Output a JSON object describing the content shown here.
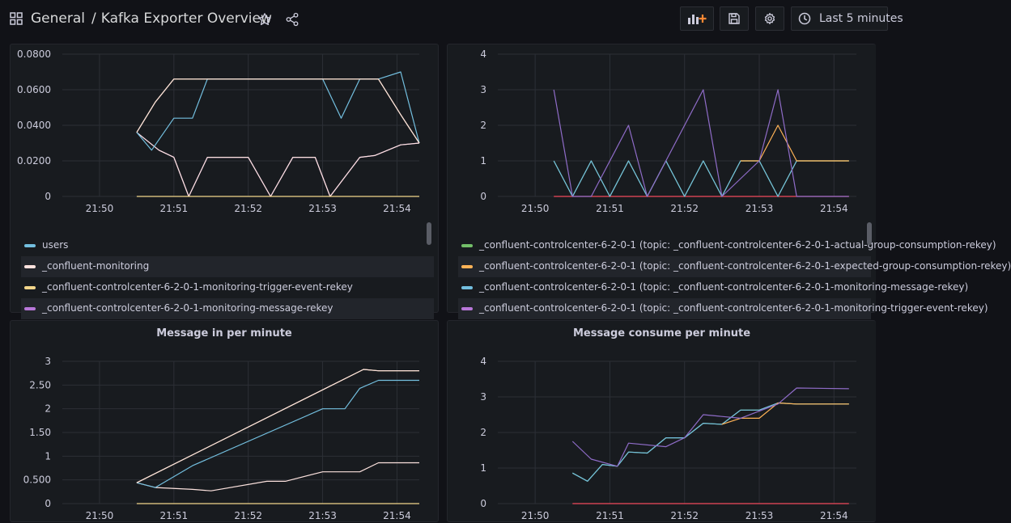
{
  "header": {
    "folder": "General",
    "separator": "/",
    "dashboard_title": "Kafka Exporter Overview",
    "time_range_label": "Last 5 minutes"
  },
  "panels": {
    "p1": {
      "title": "",
      "legend": [
        {
          "label": "users",
          "color": "#73bfdf"
        },
        {
          "label": "_confluent-monitoring",
          "color": "#fce2de"
        },
        {
          "label": "_confluent-controlcenter-6-2-0-1-monitoring-trigger-event-rekey",
          "color": "#f2d58a"
        },
        {
          "label": "_confluent-controlcenter-6-2-0-1-monitoring-message-rekey",
          "color": "#b877d9"
        }
      ]
    },
    "p2": {
      "title": "",
      "legend": [
        {
          "label": "_confluent-controlcenter-6-2-0-1 (topic: _confluent-controlcenter-6-2-0-1-actual-group-consumption-rekey)",
          "color": "#73bf69"
        },
        {
          "label": "_confluent-controlcenter-6-2-0-1 (topic: _confluent-controlcenter-6-2-0-1-expected-group-consumption-rekey)",
          "color": "#ffb357"
        },
        {
          "label": "_confluent-controlcenter-6-2-0-1 (topic: _confluent-controlcenter-6-2-0-1-monitoring-message-rekey)",
          "color": "#73bfdf"
        },
        {
          "label": "_confluent-controlcenter-6-2-0-1 (topic: _confluent-controlcenter-6-2-0-1-monitoring-trigger-event-rekey)",
          "color": "#b877d9"
        }
      ]
    },
    "p3": {
      "title": "Message in per minute"
    },
    "p4": {
      "title": "Message consume per minute"
    }
  },
  "chart_data": [
    {
      "type": "line",
      "xlim": [
        0,
        4.8
      ],
      "x_ticks": [
        0.5,
        1.5,
        2.5,
        3.5,
        4.5
      ],
      "x_tick_labels": [
        "21:50",
        "21:51",
        "21:52",
        "21:53",
        "21:54"
      ],
      "ylim": [
        0,
        0.08
      ],
      "y_ticks": [
        0,
        0.02,
        0.04,
        0.06,
        0.08
      ],
      "y_tick_labels": [
        "0",
        "0.0200",
        "0.0400",
        "0.0600",
        "0.0800"
      ],
      "grid": true,
      "series": [
        {
          "color": "#b877d9",
          "x": [
            1.0,
            1.3,
            1.5,
            1.7,
            1.95,
            2.5,
            2.8,
            3.1,
            3.4,
            3.6,
            4.0,
            4.2,
            4.55,
            4.8
          ],
          "y": [
            0.036,
            0.026,
            0.022,
            0,
            0.022,
            0.022,
            0,
            0.022,
            0.022,
            0,
            0.022,
            0.023,
            0.029,
            0.03
          ]
        },
        {
          "color": "#fce2de",
          "x": [
            1.0,
            1.3,
            1.5,
            1.7,
            1.95,
            2.5,
            2.8,
            3.1,
            3.4,
            3.6,
            4.0,
            4.2,
            4.55,
            4.8
          ],
          "y": [
            0.036,
            0.026,
            0.022,
            0,
            0.022,
            0.022,
            0,
            0.022,
            0.022,
            0,
            0.022,
            0.023,
            0.029,
            0.03
          ]
        },
        {
          "color": "#73bfdf",
          "x": [
            1.0,
            1.2,
            1.5,
            1.75,
            1.95,
            2.5,
            3.1,
            3.5,
            3.75,
            4.0,
            4.25,
            4.55,
            4.8
          ],
          "y": [
            0.036,
            0.026,
            0.044,
            0.044,
            0.066,
            0.066,
            0.066,
            0.066,
            0.044,
            0.066,
            0.066,
            0.07,
            0.03
          ]
        },
        {
          "color": "#f2d58a",
          "x": [
            1.0,
            1.25,
            1.5,
            1.75,
            1.95,
            2.5,
            3.1,
            3.5,
            3.75,
            4.0,
            4.25,
            4.55,
            4.8
          ],
          "y": [
            0.036,
            0.053,
            0.066,
            0.066,
            0.066,
            0.066,
            0.066,
            0.066,
            0.066,
            0.066,
            0.066,
            0.046,
            0.03
          ]
        },
        {
          "color": "#fce2de",
          "x": [
            1.0,
            1.25,
            1.5,
            1.75,
            1.95,
            2.5,
            3.1,
            3.5,
            3.75,
            4.0,
            4.25,
            4.55,
            4.8
          ],
          "y": [
            0.036,
            0.053,
            0.066,
            0.066,
            0.066,
            0.066,
            0.066,
            0.066,
            0.066,
            0.066,
            0.066,
            0.046,
            0.03
          ]
        },
        {
          "color": "#f2d58a",
          "x": [
            1.0,
            4.8
          ],
          "y": [
            0,
            0
          ]
        }
      ]
    },
    {
      "type": "line",
      "xlim": [
        0,
        4.8
      ],
      "x_ticks": [
        0.5,
        1.5,
        2.5,
        3.5,
        4.5
      ],
      "x_tick_labels": [
        "21:50",
        "21:51",
        "21:52",
        "21:53",
        "21:54"
      ],
      "ylim": [
        0,
        4
      ],
      "y_ticks": [
        0,
        1,
        2,
        3,
        4
      ],
      "y_tick_labels": [
        "0",
        "1",
        "2",
        "3",
        "4"
      ],
      "grid": true,
      "series": [
        {
          "color": "#f2495c",
          "x": [
            0.75,
            4.7
          ],
          "y": [
            0,
            0
          ]
        },
        {
          "color": "#73bf69",
          "x": [
            0.75,
            1.0,
            1.25,
            1.5,
            1.75,
            2.0,
            2.25,
            2.5,
            2.75,
            3.0,
            3.25,
            3.5,
            3.75,
            4.0,
            4.25,
            4.7
          ],
          "y": [
            1,
            0,
            1,
            0,
            1,
            0,
            1,
            0,
            1,
            0,
            1,
            1,
            0,
            1,
            1,
            1
          ]
        },
        {
          "color": "#73bfdf",
          "x": [
            0.75,
            1.0,
            1.25,
            1.5,
            1.75,
            2.0,
            2.25,
            2.5,
            2.75,
            3.0,
            3.25,
            3.5,
            3.75,
            4.0,
            4.25,
            4.7
          ],
          "y": [
            1,
            0,
            1,
            0,
            1,
            0,
            1,
            0,
            1,
            0,
            1,
            1,
            0,
            1,
            1,
            1
          ]
        },
        {
          "color": "#ffb357",
          "x": [
            3.25,
            3.5,
            3.75,
            4.0,
            4.25,
            4.7
          ],
          "y": [
            1,
            1,
            2,
            1,
            1,
            1
          ]
        },
        {
          "color": "#8f6cc8",
          "x": [
            0.75,
            1.0,
            1.25,
            1.75,
            2.0,
            2.75,
            3.0,
            3.5,
            3.75,
            4.0,
            4.7
          ],
          "y": [
            3,
            0,
            0,
            2,
            0,
            3,
            0,
            1,
            3,
            0,
            0
          ]
        }
      ]
    },
    {
      "type": "line",
      "xlim": [
        0,
        4.8
      ],
      "x_ticks": [
        0.5,
        1.5,
        2.5,
        3.5,
        4.5
      ],
      "x_tick_labels": [
        "21:50",
        "21:51",
        "21:52",
        "21:53",
        "21:54"
      ],
      "ylim": [
        0,
        3
      ],
      "y_ticks": [
        0,
        0.5,
        1,
        1.5,
        2,
        2.5,
        3
      ],
      "y_tick_labels": [
        "0",
        "0.500",
        "1",
        "1.50",
        "2",
        "2.50",
        "3"
      ],
      "grid": true,
      "series": [
        {
          "color": "#f2d58a",
          "x": [
            1.0,
            4.8
          ],
          "y": [
            0,
            0
          ]
        },
        {
          "color": "#fce2de",
          "x": [
            1.0,
            1.25,
            1.75,
            2.0,
            2.75,
            3.0,
            3.5,
            4.0,
            4.25,
            4.8
          ],
          "y": [
            0.44,
            0.34,
            0.3,
            0.27,
            0.47,
            0.47,
            0.67,
            0.67,
            0.86,
            0.86
          ]
        },
        {
          "color": "#73bfdf",
          "x": [
            1.0,
            1.25,
            1.75,
            3.5,
            3.8,
            4.0,
            4.25,
            4.8
          ],
          "y": [
            0.44,
            0.34,
            0.8,
            2.0,
            2.0,
            2.43,
            2.6,
            2.6
          ]
        },
        {
          "color": "#f2d58a",
          "x": [
            1.0,
            4.05,
            4.25,
            4.8
          ],
          "y": [
            0.44,
            2.83,
            2.8,
            2.8
          ]
        },
        {
          "color": "#fce2de",
          "x": [
            1.0,
            4.05,
            4.25,
            4.8
          ],
          "y": [
            0.44,
            2.83,
            2.8,
            2.8
          ]
        }
      ]
    },
    {
      "type": "line",
      "xlim": [
        0,
        4.8
      ],
      "x_ticks": [
        0.5,
        1.5,
        2.5,
        3.5,
        4.5
      ],
      "x_tick_labels": [
        "21:50",
        "21:51",
        "21:52",
        "21:53",
        "21:54"
      ],
      "ylim": [
        0,
        4
      ],
      "y_ticks": [
        0,
        1,
        2,
        3,
        4
      ],
      "y_tick_labels": [
        "0",
        "1",
        "2",
        "3",
        "4"
      ],
      "grid": true,
      "series": [
        {
          "color": "#f2495c",
          "x": [
            1.0,
            4.7
          ],
          "y": [
            0,
            0
          ]
        },
        {
          "color": "#73bf69",
          "x": [
            1.0,
            1.2,
            1.4,
            1.6,
            1.75,
            2.0,
            2.25,
            2.5,
            2.75,
            3.0,
            3.25,
            3.5,
            3.75,
            4.0,
            4.25,
            4.7
          ],
          "y": [
            0.86,
            0.63,
            1.1,
            1.05,
            1.45,
            1.42,
            1.85,
            1.85,
            2.26,
            2.23,
            2.63,
            2.63,
            2.83,
            2.8,
            2.8,
            2.8
          ]
        },
        {
          "color": "#73bfdf",
          "x": [
            1.0,
            1.2,
            1.4,
            1.6,
            1.75,
            2.0,
            2.25,
            2.5,
            2.75,
            3.0,
            3.25,
            3.5,
            3.75,
            4.0,
            4.25,
            4.7
          ],
          "y": [
            0.86,
            0.63,
            1.1,
            1.05,
            1.45,
            1.42,
            1.85,
            1.85,
            2.26,
            2.23,
            2.63,
            2.63,
            2.83,
            2.8,
            2.8,
            2.8
          ]
        },
        {
          "color": "#ffb357",
          "x": [
            3.0,
            3.25,
            3.5,
            3.75,
            4.0,
            4.25,
            4.7
          ],
          "y": [
            2.23,
            2.4,
            2.4,
            2.83,
            2.8,
            2.8,
            2.8
          ]
        },
        {
          "color": "#8f6cc8",
          "x": [
            1.0,
            1.25,
            1.6,
            1.75,
            2.25,
            2.5,
            2.75,
            3.25,
            3.5,
            3.75,
            4.0,
            4.7
          ],
          "y": [
            1.75,
            1.25,
            1.05,
            1.7,
            1.6,
            1.85,
            2.5,
            2.4,
            2.6,
            2.8,
            3.25,
            3.23
          ]
        }
      ]
    }
  ]
}
